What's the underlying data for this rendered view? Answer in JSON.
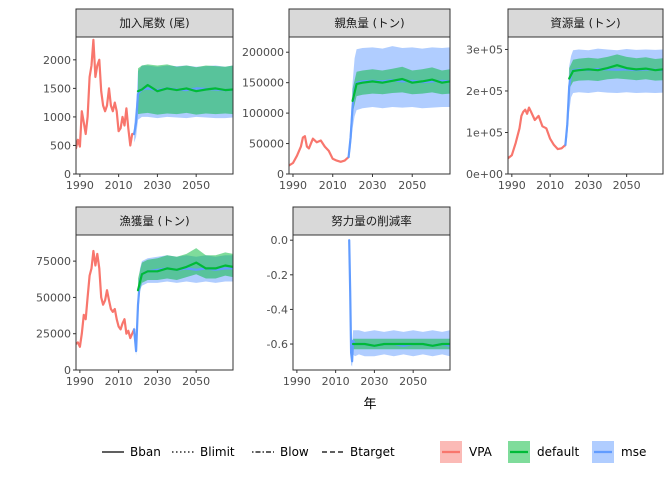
{
  "chart_data": {
    "type": "line",
    "xlabel": "年",
    "colors": {
      "VPA": "#F8766D",
      "default": "#00BA38",
      "mse": "#619CFF"
    },
    "legend": {
      "placement": "bottom",
      "linetypes": [
        {
          "name": "Bban",
          "dash": "solid"
        },
        {
          "name": "Blimit",
          "dash": "dotted"
        },
        {
          "name": "Blow",
          "dash": "dotdash"
        },
        {
          "name": "Btarget",
          "dash": "dashed"
        }
      ],
      "series": [
        "VPA",
        "default",
        "mse"
      ]
    },
    "panels": [
      {
        "title": "加入尾数 (尾)",
        "xlim": [
          1988,
          2069
        ],
        "ylim": [
          0,
          2400
        ],
        "xticks": [
          1990,
          2010,
          2030,
          2050
        ],
        "yticks": [
          0,
          500,
          1000,
          1500,
          2000
        ],
        "ytick_labels": [
          "0",
          "500",
          "1000",
          "1500",
          "2000"
        ],
        "vpa": {
          "x": [
            1988,
            1989,
            1990,
            1991,
            1992,
            1993,
            1994,
            1995,
            1996,
            1997,
            1998,
            1999,
            2000,
            2001,
            2002,
            2003,
            2004,
            2005,
            2006,
            2007,
            2008,
            2009,
            2010,
            2011,
            2012,
            2013,
            2014,
            2015,
            2016,
            2017,
            2018
          ],
          "y": [
            450,
            600,
            480,
            1100,
            900,
            700,
            1000,
            1700,
            1900,
            2350,
            1700,
            1900,
            2000,
            1450,
            1200,
            1100,
            1200,
            1500,
            1200,
            1100,
            1250,
            1100,
            750,
            800,
            1000,
            850,
            1150,
            800,
            500,
            700,
            700
          ]
        },
        "mse": {
          "x": [
            2018,
            2019,
            2020,
            2022,
            2025,
            2030,
            2035,
            2040,
            2045,
            2050,
            2055,
            2060,
            2065,
            2069
          ],
          "mid": [
            700,
            900,
            1400,
            1480,
            1500,
            1470,
            1500,
            1480,
            1470,
            1500,
            1490,
            1480,
            1470,
            1480
          ],
          "lo": [
            550,
            650,
            950,
            1000,
            1000,
            980,
            1000,
            990,
            980,
            1000,
            990,
            980,
            980,
            990
          ],
          "hi": [
            850,
            1200,
            1800,
            1900,
            1900,
            1880,
            1900,
            1890,
            1900,
            1880,
            1890,
            1900,
            1880,
            1900
          ]
        },
        "default": {
          "x": [
            2020,
            2022,
            2025,
            2030,
            2035,
            2040,
            2045,
            2050,
            2055,
            2060,
            2065,
            2069
          ],
          "mid": [
            1450,
            1480,
            1560,
            1450,
            1500,
            1470,
            1500,
            1450,
            1480,
            1500,
            1470,
            1480
          ],
          "lo": [
            1050,
            1060,
            1070,
            1040,
            1060,
            1050,
            1070,
            1040,
            1060,
            1050,
            1060,
            1050
          ],
          "hi": [
            1850,
            1900,
            1920,
            1900,
            1920,
            1880,
            1900,
            1870,
            1900,
            1890,
            1880,
            1900
          ]
        }
      },
      {
        "title": "親魚量 (トン)",
        "xlim": [
          1988,
          2069
        ],
        "ylim": [
          0,
          225000
        ],
        "xticks": [
          1990,
          2010,
          2030,
          2050
        ],
        "yticks": [
          0,
          50000,
          100000,
          150000,
          200000
        ],
        "ytick_labels": [
          "0",
          "50000",
          "100000",
          "150000",
          "200000"
        ],
        "vpa": {
          "x": [
            1988,
            1990,
            1992,
            1994,
            1995,
            1996,
            1997,
            1998,
            1999,
            2000,
            2002,
            2004,
            2006,
            2008,
            2010,
            2012,
            2014,
            2016,
            2018
          ],
          "y": [
            14000,
            18000,
            30000,
            45000,
            60000,
            62000,
            45000,
            42000,
            50000,
            58000,
            52000,
            55000,
            45000,
            38000,
            25000,
            22000,
            20000,
            22000,
            28000
          ]
        },
        "mse": {
          "x": [
            2018,
            2019,
            2020,
            2021,
            2022,
            2025,
            2030,
            2035,
            2040,
            2045,
            2050,
            2055,
            2060,
            2065,
            2069
          ],
          "mid": [
            28000,
            60000,
            110000,
            140000,
            150000,
            152000,
            153000,
            152000,
            154000,
            152000,
            153000,
            151000,
            152000,
            153000,
            152000
          ],
          "lo": [
            24000,
            40000,
            75000,
            95000,
            105000,
            108000,
            110000,
            108000,
            110000,
            109000,
            110000,
            108000,
            109000,
            110000,
            110000
          ],
          "hi": [
            32000,
            85000,
            150000,
            190000,
            205000,
            207000,
            208000,
            206000,
            210000,
            207000,
            208000,
            206000,
            208000,
            207000,
            208000
          ]
        },
        "default": {
          "x": [
            2020,
            2022,
            2025,
            2030,
            2035,
            2040,
            2045,
            2050,
            2055,
            2060,
            2065,
            2069
          ],
          "mid": [
            120000,
            148000,
            150000,
            152000,
            150000,
            153000,
            156000,
            150000,
            152000,
            155000,
            150000,
            152000
          ],
          "lo": [
            100000,
            128000,
            130000,
            132000,
            131000,
            133000,
            134000,
            131000,
            132000,
            134000,
            131000,
            132000
          ],
          "hi": [
            140000,
            168000,
            170000,
            172000,
            170000,
            173000,
            176000,
            170000,
            172000,
            175000,
            170000,
            172000
          ]
        }
      },
      {
        "title": "資源量 (トン)",
        "xlim": [
          1988,
          2069
        ],
        "ylim": [
          0,
          330000
        ],
        "xticks": [
          1990,
          2010,
          2030,
          2050
        ],
        "yticks": [
          0,
          100000,
          200000,
          300000
        ],
        "ytick_labels": [
          "0e+00",
          "1e+05",
          "2e+05",
          "3e+05"
        ],
        "vpa": {
          "x": [
            1988,
            1990,
            1992,
            1994,
            1995,
            1996,
            1997,
            1998,
            1999,
            2000,
            2002,
            2004,
            2006,
            2008,
            2010,
            2012,
            2014,
            2016,
            2018
          ],
          "y": [
            38000,
            45000,
            75000,
            110000,
            140000,
            150000,
            155000,
            145000,
            160000,
            150000,
            130000,
            140000,
            115000,
            110000,
            85000,
            70000,
            60000,
            62000,
            70000
          ]
        },
        "mse": {
          "x": [
            2018,
            2019,
            2020,
            2021,
            2022,
            2025,
            2030,
            2035,
            2040,
            2045,
            2050,
            2055,
            2060,
            2065,
            2069
          ],
          "mid": [
            70000,
            120000,
            210000,
            240000,
            250000,
            252000,
            250000,
            253000,
            252000,
            251000,
            252000,
            250000,
            252000,
            251000,
            250000
          ],
          "lo": [
            60000,
            90000,
            150000,
            185000,
            195000,
            197000,
            195000,
            198000,
            196000,
            195000,
            197000,
            195000,
            196000,
            195000,
            196000
          ],
          "hi": [
            80000,
            160000,
            260000,
            285000,
            298000,
            300000,
            298000,
            302000,
            300000,
            298000,
            301000,
            299000,
            300000,
            299000,
            300000
          ]
        },
        "default": {
          "x": [
            2020,
            2022,
            2025,
            2030,
            2035,
            2040,
            2045,
            2050,
            2055,
            2060,
            2065,
            2069
          ],
          "mid": [
            230000,
            248000,
            250000,
            252000,
            250000,
            255000,
            262000,
            255000,
            252000,
            254000,
            250000,
            252000
          ],
          "lo": [
            205000,
            222000,
            225000,
            226000,
            224000,
            228000,
            230000,
            228000,
            226000,
            228000,
            225000,
            226000
          ],
          "hi": [
            255000,
            275000,
            278000,
            280000,
            278000,
            282000,
            288000,
            282000,
            279000,
            281000,
            277000,
            279000
          ]
        }
      },
      {
        "title": "漁獲量 (トン)",
        "xlim": [
          1988,
          2069
        ],
        "ylim": [
          0,
          93000
        ],
        "xticks": [
          1990,
          2010,
          2030,
          2050
        ],
        "yticks": [
          0,
          25000,
          50000,
          75000
        ],
        "ytick_labels": [
          "0",
          "25000",
          "50000",
          "75000"
        ],
        "vpa": {
          "x": [
            1988,
            1989,
            1990,
            1991,
            1992,
            1993,
            1994,
            1995,
            1996,
            1997,
            1998,
            1999,
            2000,
            2001,
            2002,
            2003,
            2004,
            2005,
            2006,
            2007,
            2008,
            2009,
            2010,
            2011,
            2012,
            2013,
            2014,
            2015,
            2016,
            2017,
            2018
          ],
          "y": [
            18000,
            19000,
            16000,
            25000,
            38000,
            35000,
            50000,
            65000,
            70000,
            82000,
            72000,
            80000,
            70000,
            50000,
            45000,
            48000,
            55000,
            48000,
            42000,
            40000,
            42000,
            35000,
            30000,
            28000,
            32000,
            35000,
            25000,
            27000,
            22000,
            25000,
            28000
          ]
        },
        "mse": {
          "x": [
            2018,
            2019,
            2020,
            2021,
            2022,
            2025,
            2030,
            2035,
            2040,
            2045,
            2050,
            2055,
            2060,
            2065,
            2069
          ],
          "mid": [
            28000,
            13000,
            45000,
            62000,
            66000,
            68000,
            69000,
            70000,
            69000,
            70000,
            69000,
            70000,
            69000,
            70000,
            70000
          ],
          "lo": [
            25000,
            10000,
            35000,
            55000,
            58000,
            60000,
            60000,
            61000,
            60000,
            61000,
            60000,
            61000,
            60000,
            61000,
            61000
          ],
          "hi": [
            31000,
            16000,
            55000,
            70000,
            75000,
            77000,
            78000,
            79000,
            78000,
            79000,
            78000,
            79000,
            78000,
            79000,
            79000
          ]
        },
        "default": {
          "x": [
            2020,
            2022,
            2025,
            2030,
            2035,
            2040,
            2045,
            2050,
            2055,
            2060,
            2065,
            2069
          ],
          "mid": [
            55000,
            66000,
            68000,
            68000,
            70000,
            69000,
            71000,
            74000,
            70000,
            70000,
            72000,
            71000
          ],
          "lo": [
            48000,
            60000,
            62000,
            62000,
            63000,
            62000,
            64000,
            66000,
            63000,
            63000,
            65000,
            64000
          ],
          "hi": [
            63000,
            74000,
            76000,
            77000,
            79000,
            78000,
            80000,
            84000,
            79000,
            79000,
            81000,
            80000
          ]
        }
      },
      {
        "title": "努力量の削減率",
        "xlim": [
          1988,
          2069
        ],
        "ylim": [
          -0.75,
          0.03
        ],
        "xticks": [
          1990,
          2010,
          2030,
          2050
        ],
        "yticks": [
          0,
          -0.2,
          -0.4,
          -0.6
        ],
        "ytick_labels": [
          "0.0",
          "-0.2",
          "-0.4",
          "-0.6"
        ],
        "mse": {
          "x": [
            2017,
            2017.5,
            2018,
            2018.5,
            2019,
            2020,
            2022,
            2025,
            2030,
            2035,
            2040,
            2045,
            2050,
            2055,
            2060,
            2065,
            2069
          ],
          "mid": [
            0.0,
            -0.3,
            -0.65,
            -0.7,
            -0.58,
            -0.6,
            -0.6,
            -0.6,
            -0.61,
            -0.6,
            -0.6,
            -0.61,
            -0.6,
            -0.6,
            -0.61,
            -0.6,
            -0.61
          ],
          "lo": [
            -0.02,
            -0.35,
            -0.72,
            -0.73,
            -0.66,
            -0.67,
            -0.66,
            -0.67,
            -0.67,
            -0.66,
            -0.67,
            -0.66,
            -0.67,
            -0.66,
            -0.67,
            -0.66,
            -0.67
          ],
          "hi": [
            0.02,
            -0.25,
            -0.55,
            -0.6,
            -0.52,
            -0.52,
            -0.52,
            -0.53,
            -0.52,
            -0.53,
            -0.52,
            -0.53,
            -0.52,
            -0.53,
            -0.52,
            -0.53,
            -0.52
          ]
        },
        "default": {
          "x": [
            2019,
            2022,
            2025,
            2030,
            2035,
            2040,
            2045,
            2050,
            2055,
            2060,
            2065,
            2069
          ],
          "mid": [
            -0.6,
            -0.6,
            -0.6,
            -0.61,
            -0.6,
            -0.6,
            -0.6,
            -0.6,
            -0.6,
            -0.61,
            -0.6,
            -0.6
          ],
          "lo": [
            -0.63,
            -0.63,
            -0.63,
            -0.63,
            -0.63,
            -0.63,
            -0.63,
            -0.63,
            -0.63,
            -0.63,
            -0.63,
            -0.63
          ],
          "hi": [
            -0.57,
            -0.57,
            -0.57,
            -0.57,
            -0.57,
            -0.57,
            -0.57,
            -0.57,
            -0.57,
            -0.57,
            -0.57,
            -0.57
          ]
        }
      }
    ]
  }
}
